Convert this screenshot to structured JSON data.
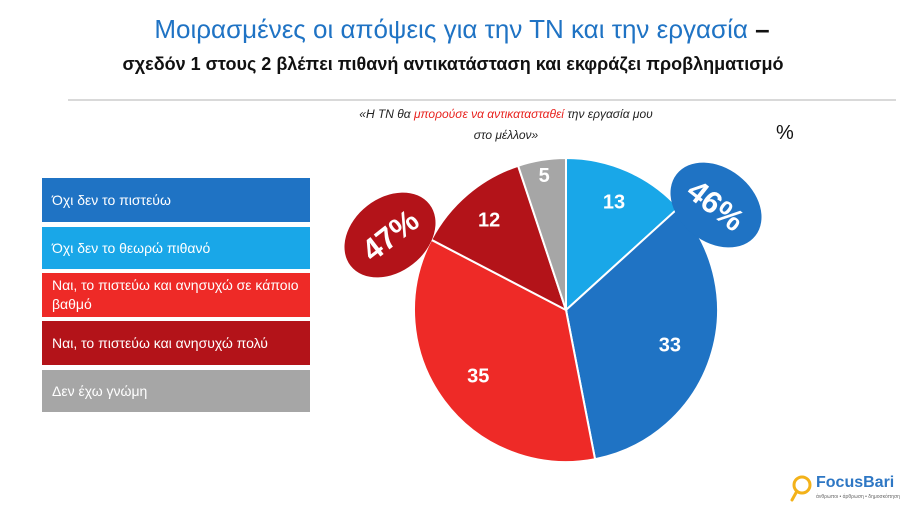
{
  "title": {
    "main": "Μοιρασμένες οι απόψεις για την ΤΝ και την εργασία",
    "dash": "–",
    "subtitle": "σχεδόν 1 στους 2 βλέπει πιθανή αντικατάσταση και εκφράζει προβληματισμό"
  },
  "question": {
    "part1": "«Η ΤΝ θα ",
    "highlight": "μπορούσε να αντικατασταθεί",
    "part2": " την εργασία μου στο μέλλον»"
  },
  "percent_sign": "%",
  "colors": {
    "dark_blue": "#1f73c4",
    "light_blue": "#19a7e8",
    "red": "#ee2a27",
    "dark_red": "#b31319",
    "grey": "#a6a6a6"
  },
  "chart_data": {
    "type": "pie",
    "slices": [
      {
        "label": "Όχι δεν το θεωρώ πιθανό",
        "value": 13,
        "color": "#19a7e8"
      },
      {
        "label": "Όχι δεν το πιστεύω",
        "value": 33,
        "color": "#1f73c4"
      },
      {
        "label": "Ναι, το πιστεύω και ανησυχώ σε κάποιο βαθμό",
        "value": 35,
        "color": "#ee2a27"
      },
      {
        "label": "Ναι, το πιστεύω και ανησυχώ πολύ",
        "value": 12,
        "color": "#b31319"
      },
      {
        "label": "Δεν έχω γνώμη",
        "value": 5,
        "color": "#a6a6a6"
      }
    ],
    "annotations": [
      {
        "text": "46%",
        "color": "#1f73c4"
      },
      {
        "text": "47%",
        "color": "#b31319"
      }
    ]
  },
  "legend": [
    {
      "label": "Όχι δεν το πιστεύω",
      "color": "#1f73c4"
    },
    {
      "label": "Όχι δεν το θεωρώ πιθανό",
      "color": "#19a7e8"
    },
    {
      "label": "Ναι, το πιστεύω και ανησυχώ σε κάποιο βαθμό",
      "color": "#ee2a27"
    },
    {
      "label": "Ναι, το πιστεύω και ανησυχώ πολύ",
      "color": "#b31319"
    },
    {
      "label": "Δεν έχω γνώμη",
      "color": "#a6a6a6"
    }
  ],
  "logo": {
    "name": "FocusBari",
    "tagline": "άνθρωποι • άρθρωση • δημοσκόπηση"
  }
}
